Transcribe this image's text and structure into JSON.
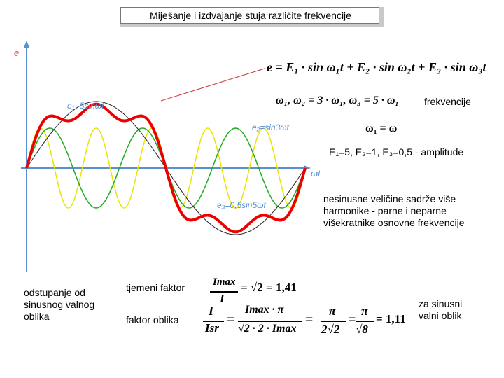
{
  "title": "Miješanje i izdvajanje stuja različite frekvencije",
  "axes": {
    "y_label": "e",
    "x_label": "ωt"
  },
  "wave_labels": {
    "e1": "e₁ -5sinωt",
    "e2": "e₂=sin3ωt",
    "e3": "e₃=0,5sin5ωt"
  },
  "colors": {
    "resultant": "#ee0000",
    "e1": "#222222",
    "e2": "#22aa22",
    "e3": "#e6e600",
    "axis": "#5b8fd0",
    "labels": "#5b8fd0",
    "pointer": "#cc3333"
  },
  "equations": {
    "main": "e = E₁ · sin ω₁t + E₂ · sin ω₂t + E₃ · sin ω₃t",
    "freq_list": "ω₁,   ω₂ = 3 · ω₁,   ω₃ = 5 · ω₁",
    "freq_label": "frekvencije",
    "omega_eq": "ω₁ = ω",
    "amplitudes": "E₁=5,  E₂=1,  E₃=0,5 - amplitude"
  },
  "notes": {
    "harmonics": [
      "nesinusne veličine sadrže više",
      "harmonike - parne i neparne",
      "višekratnike osnovne frekvencije"
    ],
    "deviation": [
      "odstupanje od",
      "sinusnog valnog",
      "oblika"
    ],
    "sinusoidal": [
      "za sinusni",
      "valni oblik"
    ]
  },
  "factors": {
    "crest_label": "tjemeni faktor",
    "crest_num": "Imax",
    "crest_den": "I",
    "crest_result": "= √2 = 1,41",
    "form_label": "faktor oblika",
    "form_num1": "I",
    "form_den1": "Isr",
    "form_num2": "Imax · π",
    "form_den2": "√2 · 2 · Imax",
    "form_num3": "π",
    "form_den3": "2√2",
    "form_eq": "=",
    "form_num4": "π",
    "form_den4": "√8",
    "form_result": "= 1,11"
  },
  "chart_data": {
    "type": "line",
    "x_range": [
      0,
      6.2832
    ],
    "series": [
      {
        "name": "e₁ -5sinωt",
        "amplitude": 5,
        "harmonic": 1
      },
      {
        "name": "e₂=sin3ωt",
        "amplitude": 1,
        "harmonic": 3
      },
      {
        "name": "e₃=0,5sin5ωt",
        "amplitude": 0.5,
        "harmonic": 5
      },
      {
        "amplitude": 6.5,
        "harmonic": "sum"
      }
    ]
  }
}
